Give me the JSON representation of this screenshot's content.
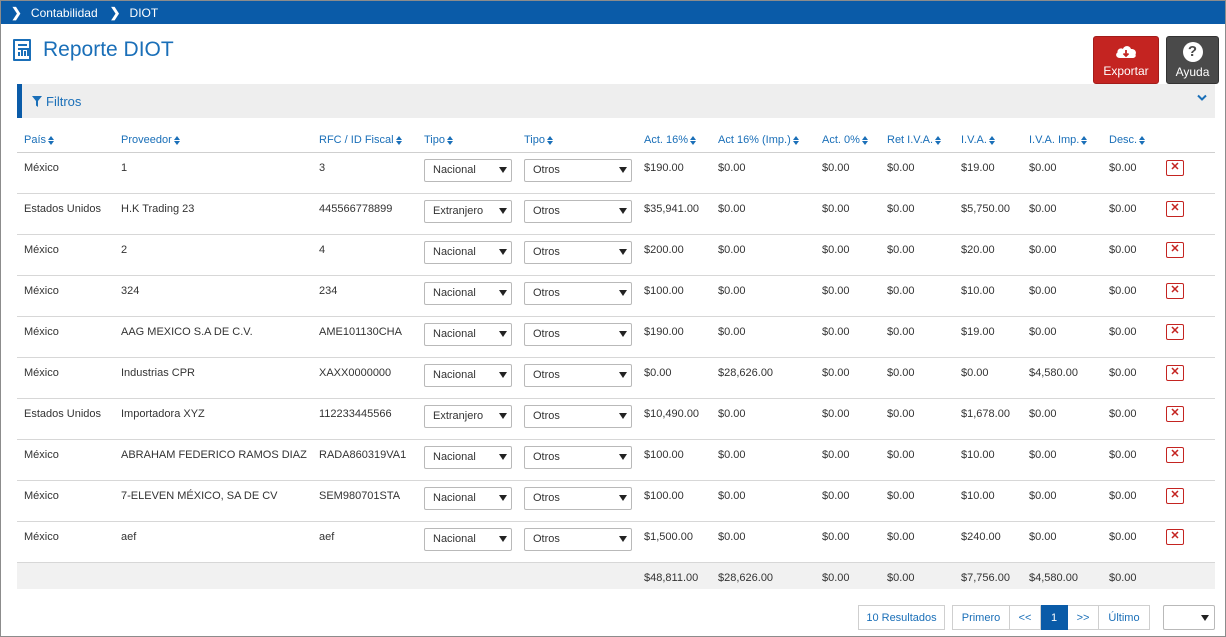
{
  "breadcrumb": [
    "Contabilidad",
    "DIOT"
  ],
  "page_title": "Reporte DIOT",
  "buttons": {
    "export": "Exportar",
    "help": "Ayuda"
  },
  "filters": {
    "label": "Filtros"
  },
  "columns": [
    "País",
    "Proveedor",
    "RFC / ID Fiscal",
    "Tipo",
    "Tipo",
    "Act. 16%",
    "Act 16% (Imp.)",
    "Act. 0%",
    "Ret I.V.A.",
    "I.V.A.",
    "I.V.A. Imp.",
    "Desc."
  ],
  "rows": [
    {
      "pais": "México",
      "proveedor": "1",
      "rfc": "3",
      "tipo": "Nacional",
      "tipo2": "Otros",
      "act16": "$190.00",
      "act16imp": "$0.00",
      "act0": "$0.00",
      "retiva": "$0.00",
      "iva": "$19.00",
      "ivaimp": "$0.00",
      "desc": "$0.00"
    },
    {
      "pais": "Estados Unidos",
      "proveedor": "H.K Trading 23",
      "rfc": "445566778899",
      "tipo": "Extranjero",
      "tipo2": "Otros",
      "act16": "$35,941.00",
      "act16imp": "$0.00",
      "act0": "$0.00",
      "retiva": "$0.00",
      "iva": "$5,750.00",
      "ivaimp": "$0.00",
      "desc": "$0.00"
    },
    {
      "pais": "México",
      "proveedor": "2",
      "rfc": "4",
      "tipo": "Nacional",
      "tipo2": "Otros",
      "act16": "$200.00",
      "act16imp": "$0.00",
      "act0": "$0.00",
      "retiva": "$0.00",
      "iva": "$20.00",
      "ivaimp": "$0.00",
      "desc": "$0.00"
    },
    {
      "pais": "México",
      "proveedor": "324",
      "rfc": "234",
      "tipo": "Nacional",
      "tipo2": "Otros",
      "act16": "$100.00",
      "act16imp": "$0.00",
      "act0": "$0.00",
      "retiva": "$0.00",
      "iva": "$10.00",
      "ivaimp": "$0.00",
      "desc": "$0.00"
    },
    {
      "pais": "México",
      "proveedor": "AAG MEXICO S.A DE C.V.",
      "rfc": "AME101130CHA",
      "tipo": "Nacional",
      "tipo2": "Otros",
      "act16": "$190.00",
      "act16imp": "$0.00",
      "act0": "$0.00",
      "retiva": "$0.00",
      "iva": "$19.00",
      "ivaimp": "$0.00",
      "desc": "$0.00"
    },
    {
      "pais": "México",
      "proveedor": "Industrias CPR",
      "rfc": "XAXX0000000",
      "tipo": "Nacional",
      "tipo2": "Otros",
      "act16": "$0.00",
      "act16imp": "$28,626.00",
      "act0": "$0.00",
      "retiva": "$0.00",
      "iva": "$0.00",
      "ivaimp": "$4,580.00",
      "desc": "$0.00"
    },
    {
      "pais": "Estados Unidos",
      "proveedor": "Importadora XYZ",
      "rfc": "112233445566",
      "tipo": "Extranjero",
      "tipo2": "Otros",
      "act16": "$10,490.00",
      "act16imp": "$0.00",
      "act0": "$0.00",
      "retiva": "$0.00",
      "iva": "$1,678.00",
      "ivaimp": "$0.00",
      "desc": "$0.00"
    },
    {
      "pais": "México",
      "proveedor": "ABRAHAM FEDERICO RAMOS DIAZ",
      "rfc": "RADA860319VA1",
      "tipo": "Nacional",
      "tipo2": "Otros",
      "act16": "$100.00",
      "act16imp": "$0.00",
      "act0": "$0.00",
      "retiva": "$0.00",
      "iva": "$10.00",
      "ivaimp": "$0.00",
      "desc": "$0.00"
    },
    {
      "pais": "México",
      "proveedor": "7-ELEVEN MÉXICO, SA DE CV",
      "rfc": "SEM980701STA",
      "tipo": "Nacional",
      "tipo2": "Otros",
      "act16": "$100.00",
      "act16imp": "$0.00",
      "act0": "$0.00",
      "retiva": "$0.00",
      "iva": "$10.00",
      "ivaimp": "$0.00",
      "desc": "$0.00"
    },
    {
      "pais": "México",
      "proveedor": "aef",
      "rfc": "aef",
      "tipo": "Nacional",
      "tipo2": "Otros",
      "act16": "$1,500.00",
      "act16imp": "$0.00",
      "act0": "$0.00",
      "retiva": "$0.00",
      "iva": "$240.00",
      "ivaimp": "$0.00",
      "desc": "$0.00"
    }
  ],
  "totals": {
    "act16": "$48,811.00",
    "act16imp": "$28,626.00",
    "act0": "$0.00",
    "retiva": "$0.00",
    "iva": "$7,756.00",
    "ivaimp": "$4,580.00",
    "desc": "$0.00"
  },
  "pagination": {
    "results": "10 Resultados",
    "first": "Primero",
    "prev": "<<",
    "current": "1",
    "next": ">>",
    "last": "Último",
    "page_size": ""
  },
  "icons": {
    "breadcrumb_sep": "chevron-right-icon",
    "export": "cloud-download-icon",
    "help": "question-icon",
    "filter": "funnel-icon",
    "collapse": "chevron-down-icon",
    "delete": "close-icon",
    "select": "caret-down-icon"
  },
  "colors": {
    "primary": "#0a5ba8",
    "link": "#1a6fb8",
    "danger": "#c42421",
    "help": "#4a4a4a",
    "filter_bg": "#eeeeee"
  }
}
